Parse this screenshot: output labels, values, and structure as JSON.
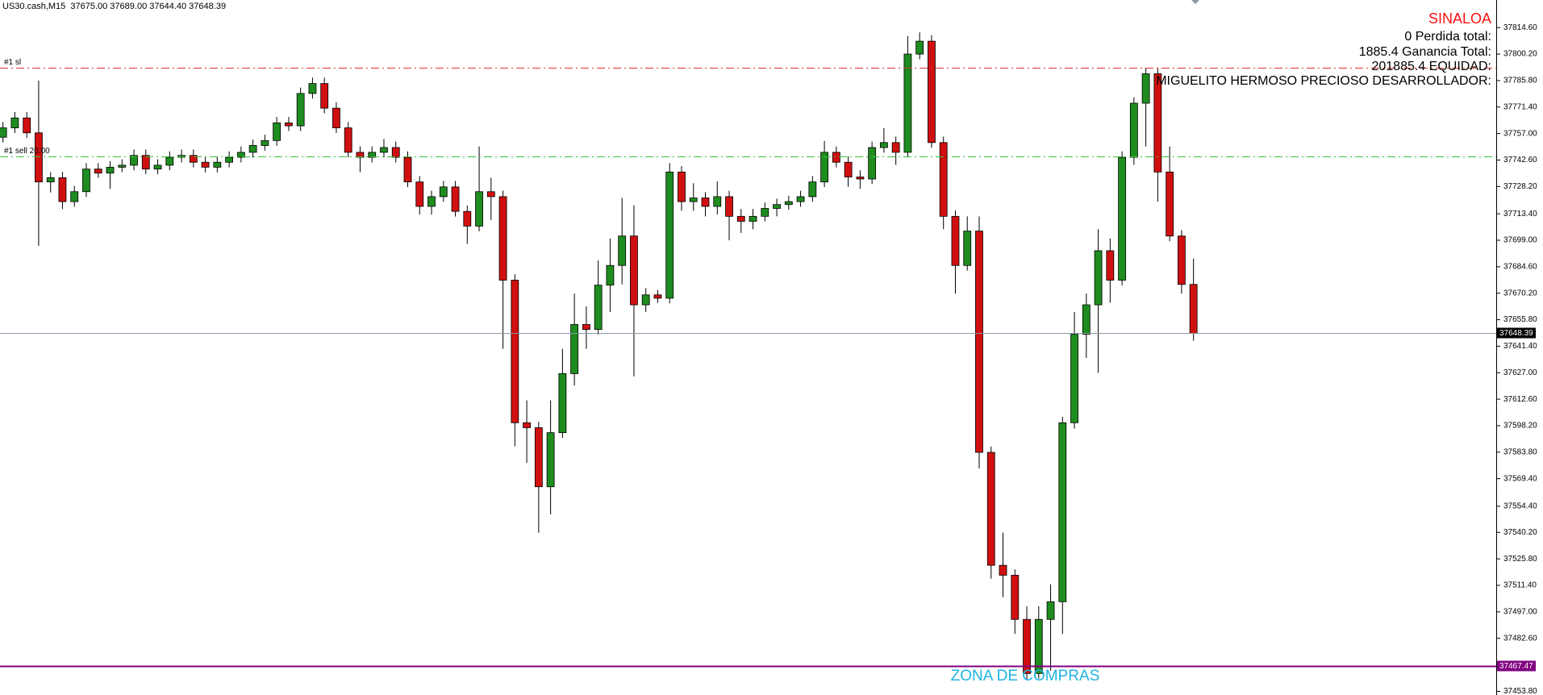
{
  "header": "US30.cash,M15  37675.00 37689.00 37644.40 37648.39",
  "chart_data": {
    "type": "candlestick",
    "up_color": "#1e8c1e",
    "down_color": "#d01010",
    "ylim": [
      37451.8,
      37829.6
    ],
    "yticks": [
      {
        "value": 37814.6,
        "label": "37814.60"
      },
      {
        "value": 37800.2,
        "label": "37800.20"
      },
      {
        "value": 37785.8,
        "label": "37785.80"
      },
      {
        "value": 37771.4,
        "label": "37771.40"
      },
      {
        "value": 37757,
        "label": "37757.00"
      },
      {
        "value": 37742.6,
        "label": "37742.60"
      },
      {
        "value": 37728.2,
        "label": "37728.20"
      },
      {
        "value": 37713.4,
        "label": "37713.40"
      },
      {
        "value": 37699,
        "label": "37699.00"
      },
      {
        "value": 37684.6,
        "label": "37684.60"
      },
      {
        "value": 37670.2,
        "label": "37670.20"
      },
      {
        "value": 37655.8,
        "label": "37655.80"
      },
      {
        "value": 37641.4,
        "label": "37641.40"
      },
      {
        "value": 37627,
        "label": "37627.00"
      },
      {
        "value": 37612.6,
        "label": "37612.60"
      },
      {
        "value": 37598.2,
        "label": "37598.20"
      },
      {
        "value": 37583.8,
        "label": "37583.80"
      },
      {
        "value": 37569.4,
        "label": "37569.40"
      },
      {
        "value": 37554.4,
        "label": "37554.40"
      },
      {
        "value": 37540.2,
        "label": "37540.20"
      },
      {
        "value": 37525.8,
        "label": "37525.80"
      },
      {
        "value": 37511.4,
        "label": "37511.40"
      },
      {
        "value": 37497,
        "label": "37497.00"
      },
      {
        "value": 37482.6,
        "label": "37482.60"
      },
      {
        "value": 37453.8,
        "label": "37453.80"
      }
    ],
    "open": [
      37755.0,
      37760.1,
      37765.5,
      37757.4,
      37730.7,
      37733.0,
      37720.0,
      37725.4,
      37737.7,
      37735.5,
      37738.7,
      37739.8,
      37745.1,
      37737.7,
      37739.8,
      37744.1,
      37745.1,
      37741.4,
      37738.7,
      37741.4,
      37744.1,
      37746.8,
      37750.5,
      37753.2,
      37762.8,
      37761.2,
      37778.8,
      37784.2,
      37770.8,
      37760.1,
      37746.8,
      37744.1,
      37746.8,
      37749.4,
      37744.1,
      37730.7,
      37717.4,
      37722.7,
      37728.0,
      37714.7,
      37706.7,
      37725.4,
      37722.7,
      37677.3,
      37599.8,
      37597.1,
      37565.0,
      37594.4,
      37626.5,
      37653.2,
      37650.5,
      37674.6,
      37685.3,
      37701.3,
      37663.9,
      37669.3,
      37667.5,
      37736.1,
      37720.0,
      37722.0,
      37717.4,
      37722.7,
      37712.0,
      37709.3,
      37712.0,
      37716.3,
      37718.4,
      37720.0,
      37722.7,
      37730.7,
      37746.8,
      37741.4,
      37733.4,
      37732.3,
      37749.4,
      37752.1,
      37746.8,
      37800.2,
      37807.2,
      37752.1,
      37712.0,
      37685.3,
      37704.0,
      37583.7,
      37522.3,
      37516.9,
      37492.9,
      37463.5,
      37492.9,
      37502.5,
      37599.8,
      37647.9,
      37663.9,
      37693.3,
      37677.3,
      37744.1,
      37773.5,
      37789.5,
      37736.1,
      37701.3,
      37675.0
    ],
    "high": [
      37763.3,
      37768.7,
      37768.7,
      37785.8,
      37736.0,
      37736.2,
      37728.6,
      37740.9,
      37741.0,
      37742.0,
      37743.0,
      37748.3,
      37748.3,
      37743.0,
      37747.3,
      37748.3,
      37748.3,
      37744.6,
      37744.6,
      37747.3,
      37750.0,
      37753.7,
      37756.4,
      37766.0,
      37766.0,
      37782.0,
      37787.4,
      37787.4,
      37774.0,
      37763.3,
      37750.0,
      37750.0,
      37754.0,
      37752.6,
      37747.3,
      37733.9,
      37725.9,
      37731.2,
      37731.2,
      37717.9,
      37750.0,
      37733.0,
      37725.9,
      37680.5,
      37612.0,
      37600.3,
      37612.0,
      37640.0,
      37670.0,
      37663.0,
      37688.0,
      37700.0,
      37722.0,
      37718.0,
      37673.0,
      37672.0,
      37741.0,
      37739.3,
      37730.0,
      37725.2,
      37731.0,
      37725.9,
      37716.0,
      37716.0,
      37719.5,
      37721.6,
      37723.2,
      37725.9,
      37733.9,
      37753.0,
      37750.0,
      37744.6,
      37737.0,
      37752.6,
      37760.0,
      37755.3,
      37810.0,
      37812.0,
      37810.4,
      37755.3,
      37715.2,
      37712.0,
      37712.0,
      37586.9,
      37540.0,
      37520.1,
      37500.0,
      37500.0,
      37512.0,
      37603.0,
      37660.0,
      37670.0,
      37705.0,
      37700.0,
      37747.3,
      37776.7,
      37792.7,
      37792.7,
      37750.0,
      37704.5,
      37689.0
    ],
    "low": [
      37752.2,
      37757.3,
      37754.6,
      37696.0,
      37725.0,
      37716.0,
      37717.2,
      37722.6,
      37733.0,
      37727.0,
      37736.0,
      37737.0,
      37734.9,
      37735.0,
      37737.0,
      37741.3,
      37738.6,
      37735.9,
      37735.9,
      37738.6,
      37741.3,
      37744.0,
      37747.7,
      37750.4,
      37758.4,
      37758.4,
      37776.0,
      37768.0,
      37757.3,
      37744.0,
      37736.0,
      37741.3,
      37744.0,
      37741.3,
      37727.9,
      37713.0,
      37713.0,
      37719.9,
      37711.9,
      37697.0,
      37703.9,
      37710.0,
      37640.0,
      37587.0,
      37578.0,
      37540.0,
      37550.0,
      37591.6,
      37620.0,
      37640.0,
      37647.7,
      37660.0,
      37675.0,
      37625.0,
      37660.0,
      37665.0,
      37664.7,
      37715.0,
      37715.0,
      37712.0,
      37713.0,
      37699.0,
      37703.0,
      37705.0,
      37709.2,
      37712.0,
      37715.6,
      37717.2,
      37719.9,
      37727.9,
      37738.6,
      37728.0,
      37727.0,
      37729.5,
      37746.6,
      37740.0,
      37744.0,
      37797.4,
      37749.3,
      37705.0,
      37670.0,
      37682.5,
      37575.0,
      37515.0,
      37505.0,
      37485.0,
      37460.0,
      37460.7,
      37465.0,
      37485.0,
      37596.6,
      37635.0,
      37627.0,
      37665.0,
      37674.5,
      37740.0,
      37750.0,
      37720.0,
      37698.5,
      37670.0,
      37644.4
    ],
    "close": [
      37760.1,
      37765.5,
      37757.4,
      37730.7,
      37733.0,
      37720.0,
      37725.4,
      37737.7,
      37735.5,
      37738.7,
      37739.8,
      37745.1,
      37737.7,
      37739.8,
      37744.1,
      37745.1,
      37741.4,
      37738.7,
      37741.4,
      37744.1,
      37746.8,
      37750.5,
      37753.2,
      37762.8,
      37761.2,
      37778.8,
      37784.2,
      37770.8,
      37760.1,
      37746.8,
      37744.1,
      37746.8,
      37749.4,
      37744.1,
      37730.7,
      37717.4,
      37722.7,
      37728.0,
      37714.7,
      37706.7,
      37725.4,
      37722.7,
      37677.3,
      37599.8,
      37597.1,
      37565.0,
      37594.4,
      37626.5,
      37653.2,
      37650.5,
      37674.6,
      37685.3,
      37701.3,
      37663.9,
      37669.3,
      37667.5,
      37736.1,
      37720.0,
      37722.0,
      37717.4,
      37722.7,
      37712.0,
      37709.3,
      37712.0,
      37716.3,
      37718.4,
      37720.0,
      37722.7,
      37730.7,
      37746.8,
      37741.4,
      37733.4,
      37732.3,
      37749.4,
      37752.1,
      37746.8,
      37800.2,
      37807.2,
      37752.1,
      37712.0,
      37685.3,
      37704.0,
      37583.7,
      37522.3,
      37516.9,
      37492.9,
      37463.5,
      37492.9,
      37502.5,
      37599.8,
      37647.9,
      37663.9,
      37693.3,
      37677.3,
      37744.1,
      37773.5,
      37789.5,
      37736.1,
      37701.3,
      37675.0,
      37648.39
    ],
    "levels": [
      {
        "name": "#1 sl",
        "value": 37792.7,
        "color": "#e03030",
        "style": "dashdot"
      },
      {
        "name": "#1 sell 20.00",
        "value": 37744.6,
        "color": "#3cc03c",
        "style": "dashdot"
      },
      {
        "value": 37648.39,
        "color": "#8a9aa8",
        "style": "solid",
        "tag": true
      },
      {
        "value": 37467.47,
        "color": "#800080",
        "style": "solid",
        "tag": true,
        "width": 2
      }
    ],
    "panel_title": "SINALOA",
    "panel_lines": [
      "0 Perdida total:",
      "1885.4 Ganancia Total:",
      "201885.4 EQUIDAD:",
      "MIGUELITO HERMOSO PRECIOSO DESARROLLADOR:"
    ],
    "zone_label": "ZONA DE COMPRAS"
  }
}
